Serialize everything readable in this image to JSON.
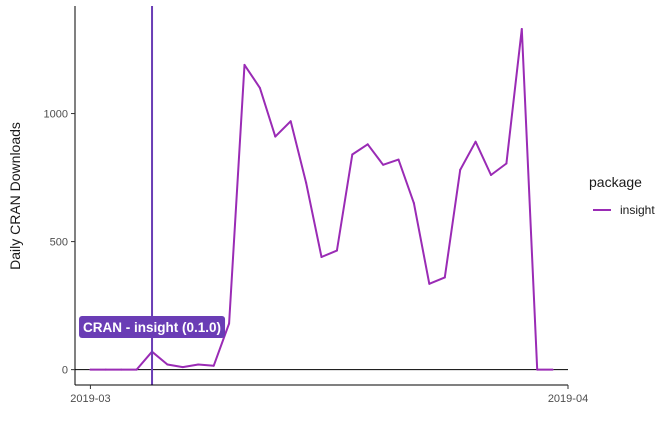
{
  "chart_data": {
    "type": "line",
    "xlabel": "",
    "ylabel": "Daily CRAN Downloads",
    "xlim": [
      "2019-02-28",
      "2019-04-01"
    ],
    "ylim": [
      -60,
      1420
    ],
    "x_ticks": [
      {
        "date": "2019-03-01",
        "label": "2019-03"
      },
      {
        "date": "2019-04-01",
        "label": "2019-04"
      }
    ],
    "y_ticks": [
      0,
      500,
      1000
    ],
    "grid": false,
    "reference_hline": 0,
    "legend": {
      "title": "package",
      "placement": "right"
    },
    "series": [
      {
        "name": "insight",
        "color": "#9A2BB5",
        "points": [
          {
            "x": "2019-03-01",
            "y": 0
          },
          {
            "x": "2019-03-02",
            "y": 0
          },
          {
            "x": "2019-03-03",
            "y": 0
          },
          {
            "x": "2019-03-04",
            "y": 0
          },
          {
            "x": "2019-03-05",
            "y": 70
          },
          {
            "x": "2019-03-06",
            "y": 20
          },
          {
            "x": "2019-03-07",
            "y": 10
          },
          {
            "x": "2019-03-08",
            "y": 20
          },
          {
            "x": "2019-03-09",
            "y": 15
          },
          {
            "x": "2019-03-10",
            "y": 180
          },
          {
            "x": "2019-03-11",
            "y": 1190
          },
          {
            "x": "2019-03-12",
            "y": 1100
          },
          {
            "x": "2019-03-13",
            "y": 910
          },
          {
            "x": "2019-03-14",
            "y": 970
          },
          {
            "x": "2019-03-15",
            "y": 730
          },
          {
            "x": "2019-03-16",
            "y": 440
          },
          {
            "x": "2019-03-17",
            "y": 465
          },
          {
            "x": "2019-03-18",
            "y": 840
          },
          {
            "x": "2019-03-19",
            "y": 880
          },
          {
            "x": "2019-03-20",
            "y": 800
          },
          {
            "x": "2019-03-21",
            "y": 820
          },
          {
            "x": "2019-03-22",
            "y": 650
          },
          {
            "x": "2019-03-23",
            "y": 335
          },
          {
            "x": "2019-03-24",
            "y": 360
          },
          {
            "x": "2019-03-25",
            "y": 780
          },
          {
            "x": "2019-03-26",
            "y": 890
          },
          {
            "x": "2019-03-27",
            "y": 760
          },
          {
            "x": "2019-03-28",
            "y": 805
          },
          {
            "x": "2019-03-29",
            "y": 1330
          },
          {
            "x": "2019-03-30",
            "y": 0
          },
          {
            "x": "2019-03-31",
            "y": 0
          }
        ]
      }
    ],
    "annotations": [
      {
        "type": "release_vline",
        "x": "2019-03-05",
        "label": "CRAN - insight (0.1.0)",
        "color": "#6A3DB5"
      }
    ]
  }
}
